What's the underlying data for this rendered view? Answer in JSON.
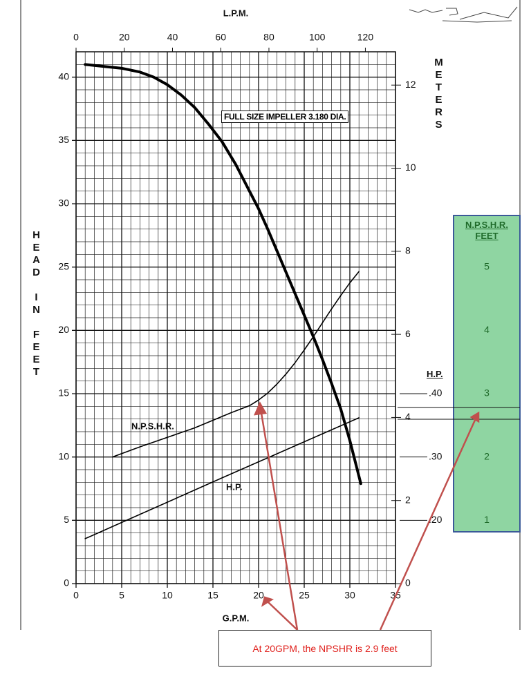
{
  "chart_data": {
    "type": "line",
    "xlabel": "G.P.M.",
    "x2label": "L.P.M.",
    "ylabel": "HEAD IN FEET",
    "y2label": "METERS",
    "y3label": "H.P.",
    "y4label": "N.P.S.H.R. FEET",
    "xlim": [
      0,
      35
    ],
    "xticks": [
      0,
      5,
      10,
      15,
      20,
      25,
      30,
      35
    ],
    "x2lim": [
      0,
      132.49
    ],
    "x2ticks": [
      0,
      20,
      40,
      60,
      80,
      100,
      120
    ],
    "ylim": [
      0,
      42
    ],
    "yticks": [
      0,
      5,
      10,
      15,
      20,
      25,
      30,
      35,
      40
    ],
    "y2lim": [
      0,
      12.8016
    ],
    "y2ticks": [
      0,
      2,
      4,
      6,
      8,
      10,
      12
    ],
    "y3lim": [
      0.1,
      0.94
    ],
    "y3ticks": [
      {
        "value": 0.2,
        "label": ".20"
      },
      {
        "value": 0.3,
        "label": ".30"
      },
      {
        "value": 0.4,
        "label": ".40"
      }
    ],
    "y4lim": [
      0,
      8.4
    ],
    "y4ticks": [
      1,
      2,
      3,
      4,
      5
    ],
    "grid": true,
    "series": [
      {
        "name": "FULL SIZE IMPELLER 3.180 DIA.",
        "color": "#000000",
        "axis": "y",
        "x": [
          1,
          3,
          5,
          7,
          8.5,
          10,
          11.5,
          13,
          14.5,
          16,
          17.5,
          19,
          20,
          21,
          22,
          23,
          24,
          25,
          26,
          27,
          28,
          29,
          30,
          31.2
        ],
        "values": [
          41.0,
          40.85,
          40.7,
          40.4,
          40.0,
          39.4,
          38.6,
          37.6,
          36.3,
          34.9,
          33.1,
          31.0,
          29.6,
          28.0,
          26.3,
          24.6,
          22.9,
          21.2,
          19.5,
          17.7,
          15.8,
          13.8,
          11.3,
          7.9
        ]
      },
      {
        "name": "N.P.S.H.R.",
        "color": "#000000",
        "axis": "y4",
        "x": [
          4,
          7,
          10,
          13,
          15,
          17,
          19,
          20,
          21,
          22,
          23,
          24,
          25,
          26,
          27,
          28,
          29,
          30,
          31
        ],
        "values": [
          2.0,
          2.16,
          2.31,
          2.46,
          2.58,
          2.7,
          2.81,
          2.9,
          3.01,
          3.15,
          3.31,
          3.49,
          3.69,
          3.9,
          4.12,
          4.34,
          4.55,
          4.75,
          4.93
        ]
      },
      {
        "name": "H.P.",
        "color": "#000000",
        "axis": "y3",
        "x": [
          1,
          16,
          31
        ],
        "values": [
          0.171,
          0.267,
          0.362
        ]
      }
    ],
    "annotation": "At 20GPM, the NPSHR is 2.9 feet"
  }
}
